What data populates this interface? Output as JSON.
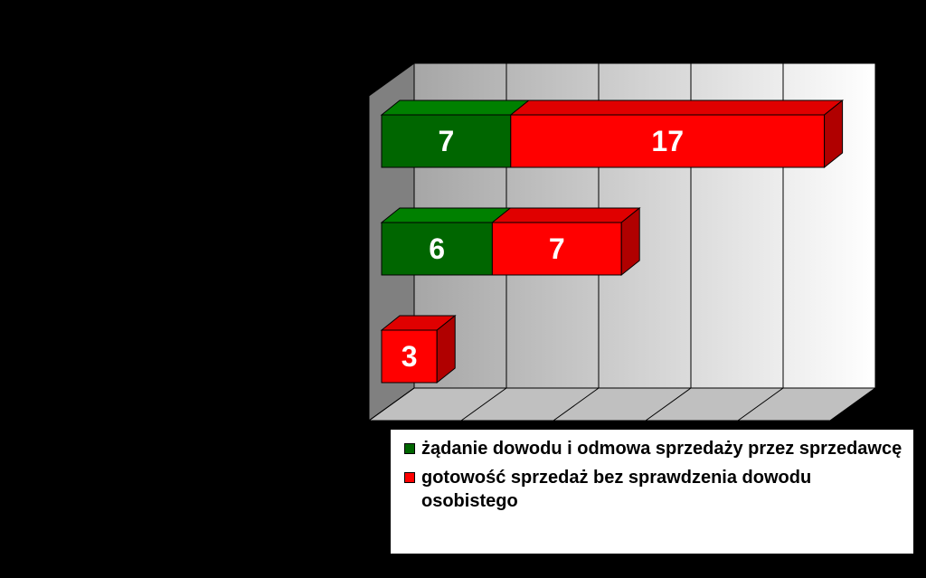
{
  "chart_data": {
    "type": "bar",
    "stacked": true,
    "orientation": "horizontal",
    "three_d": true,
    "categories": [
      "",
      "",
      ""
    ],
    "series": [
      {
        "name": "żądanie dowodu i odmowa sprzedaży przez sprzedawcę",
        "values": [
          7,
          6,
          0
        ],
        "color": "#006600"
      },
      {
        "name": "gotowość sprzedaż bez sprawdzenia dowodu osobistego",
        "values": [
          17,
          7,
          3
        ],
        "color": "#ff0000"
      }
    ],
    "data_labels": [
      [
        "7",
        "6",
        ""
      ],
      [
        "17",
        "7",
        "3"
      ]
    ],
    "xlim": [
      0,
      25
    ],
    "x_tick_step": 5,
    "grid": true,
    "legend_position": "bottom-right",
    "title": "",
    "xlabel": "",
    "ylabel": ""
  },
  "colors": {
    "background": "#000000",
    "green_front": "#006600",
    "green_top": "#008000",
    "green_side": "#004d00",
    "red_front": "#ff0000",
    "red_top": "#e00000",
    "red_side": "#b00000",
    "wall_left": "#808080",
    "floor": "#c0c0c0"
  }
}
